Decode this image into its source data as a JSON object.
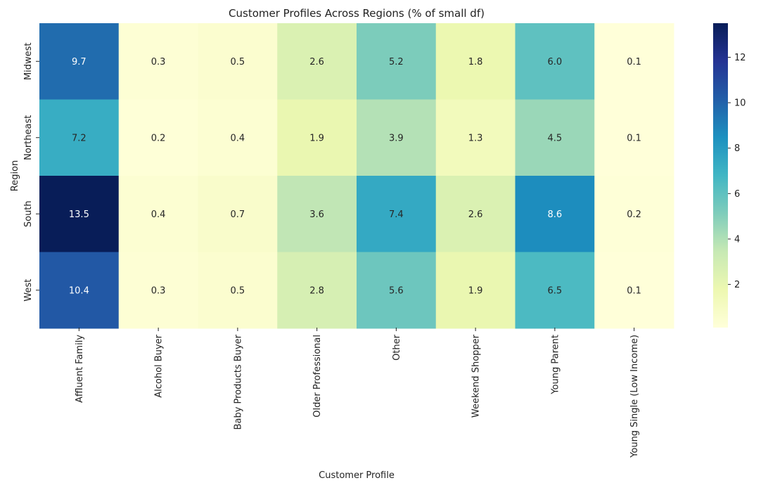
{
  "chart_data": {
    "type": "heatmap",
    "title": "Customer Profiles Across Regions (% of small df)",
    "xlabel": "Customer Profile",
    "ylabel": "Region",
    "columns": [
      "Affluent Family",
      "Alcohol Buyer",
      "Baby Products Buyer",
      "Older Professional",
      "Other",
      "Weekend Shopper",
      "Young Parent",
      "Young Single (Low Income)"
    ],
    "rows": [
      "Midwest",
      "Northeast",
      "South",
      "West"
    ],
    "values": [
      [
        9.7,
        0.3,
        0.5,
        2.6,
        5.2,
        1.8,
        6.0,
        0.1
      ],
      [
        7.2,
        0.2,
        0.4,
        1.9,
        3.9,
        1.3,
        4.5,
        0.1
      ],
      [
        13.5,
        0.4,
        0.7,
        3.6,
        7.4,
        2.6,
        8.6,
        0.2
      ],
      [
        10.4,
        0.3,
        0.5,
        2.8,
        5.6,
        1.9,
        6.5,
        0.1
      ]
    ],
    "value_labels": [
      [
        "9.7",
        "0.3",
        "0.5",
        "2.6",
        "5.2",
        "1.8",
        "6.0",
        "0.1"
      ],
      [
        "7.2",
        "0.2",
        "0.4",
        "1.9",
        "3.9",
        "1.3",
        "4.5",
        "0.1"
      ],
      [
        "13.5",
        "0.4",
        "0.7",
        "3.6",
        "7.4",
        "2.6",
        "8.6",
        "0.2"
      ],
      [
        "10.4",
        "0.3",
        "0.5",
        "2.8",
        "5.6",
        "1.9",
        "6.5",
        "0.1"
      ]
    ],
    "colormap": "YlGnBu",
    "color_range": [
      0.1,
      13.5
    ],
    "colorbar_ticks": [
      "2",
      "4",
      "6",
      "8",
      "10",
      "12"
    ],
    "colorbar_tick_values": [
      2,
      4,
      6,
      8,
      10,
      12
    ]
  }
}
